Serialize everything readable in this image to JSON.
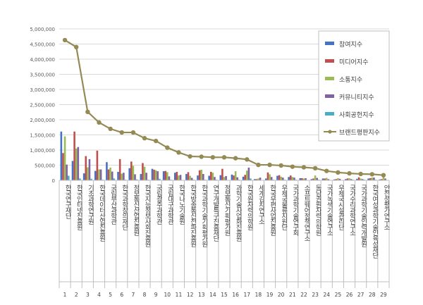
{
  "chart_data": {
    "type": "bar",
    "title": "",
    "xlabel": "",
    "ylabel": "",
    "ylim": [
      0,
      5000000
    ],
    "y_ticks": [
      "0",
      "500,000",
      "1,000,000",
      "1,500,000",
      "2,000,000",
      "2,500,000",
      "3,000,000",
      "3,500,000",
      "4,000,000",
      "4,500,000",
      "5,000,000"
    ],
    "y_tick_values": [
      0,
      500000,
      1000000,
      1500000,
      2000000,
      2500000,
      3000000,
      3500000,
      4000000,
      4500000,
      5000000
    ],
    "ranks": [
      "1",
      "2",
      "3",
      "4",
      "5",
      "6",
      "7",
      "8",
      "9",
      "10",
      "11",
      "12",
      "13",
      "14",
      "15",
      "16",
      "17",
      "18",
      "19",
      "20",
      "21",
      "22",
      "23",
      "24",
      "25",
      "26",
      "27",
      "28",
      "29"
    ],
    "categories": [
      "한국연구재단",
      "한국인터넷진흥원",
      "기초과학연구원",
      "한국데이터산업진흥원",
      "국립부산과학관",
      "한국과학창의재단",
      "정보통신산업진흥원",
      "한국지능정보사회진흥원",
      "국립광주과학관",
      "국립대구과학관",
      "한국나노기술원",
      "한국방송통신전파진흥원",
      "한국과학기술기획평가원",
      "연구개발특구진흥재단",
      "정보통신기획평가원",
      "과학기술사업화진흥원",
      "한국원자력의학원",
      "세계김치연구소",
      "한국우편사업진흥원",
      "우체국물류지원단",
      "국가과학기술연구회",
      "소프트웨어정책연구소",
      "동남권원자력의학원",
      "국가녹색기술연구소",
      "우체국시설관리단",
      "국가수리과학연구소",
      "국가과학기술인력개발원",
      "한국여성과학기술인육성재단",
      "안전성평가연구소"
    ],
    "series": [
      {
        "name": "참여지수",
        "color": "#4472c4",
        "type": "bar",
        "values": [
          1610000,
          640000,
          230000,
          310000,
          600000,
          280000,
          400000,
          210000,
          380000,
          300000,
          250000,
          210000,
          160000,
          150000,
          170000,
          190000,
          120000,
          40000,
          60000,
          150000,
          110000,
          70000,
          40000,
          60000,
          30000,
          40000,
          50000,
          60000,
          30000
        ]
      },
      {
        "name": "미디어지수",
        "color": "#c0504d",
        "type": "bar",
        "values": [
          900000,
          1610000,
          800000,
          980000,
          360000,
          700000,
          620000,
          570000,
          350000,
          310000,
          280000,
          270000,
          330000,
          280000,
          380000,
          160000,
          180000,
          40000,
          260000,
          170000,
          160000,
          70000,
          60000,
          60000,
          40000,
          60000,
          100000,
          70000,
          40000
        ]
      },
      {
        "name": "소통지수",
        "color": "#9bbb59",
        "type": "bar",
        "values": [
          1450000,
          1050000,
          430000,
          360000,
          420000,
          220000,
          480000,
          450000,
          330000,
          270000,
          160000,
          150000,
          350000,
          250000,
          110000,
          300000,
          320000,
          60000,
          200000,
          120000,
          110000,
          60000,
          160000,
          80000,
          70000,
          70000,
          60000,
          90000,
          110000
        ]
      },
      {
        "name": "커뮤니티지수",
        "color": "#8064a2",
        "type": "bar",
        "values": [
          520000,
          1100000,
          700000,
          360000,
          290000,
          250000,
          200000,
          250000,
          300000,
          130000,
          180000,
          80000,
          210000,
          110000,
          140000,
          100000,
          420000,
          90000,
          110000,
          90000,
          90000,
          70000,
          80000,
          40000,
          50000,
          40000,
          40000,
          90000,
          60000
        ]
      },
      {
        "name": "사회공헌지수",
        "color": "#4bacc6",
        "type": "bar",
        "values": [
          150000,
          60000,
          50000,
          20000,
          60000,
          20000,
          30000,
          20000,
          50000,
          20000,
          10000,
          20000,
          20000,
          20000,
          10000,
          20000,
          60000,
          10000,
          20000,
          20000,
          20000,
          10000,
          20000,
          10000,
          10000,
          20000,
          20000,
          20000,
          10000
        ]
      },
      {
        "name": "브랜드평판지수",
        "color": "#948a54",
        "type": "line",
        "values": [
          4630000,
          4400000,
          2260000,
          1910000,
          1700000,
          1580000,
          1580000,
          1390000,
          1300000,
          1080000,
          920000,
          790000,
          780000,
          760000,
          760000,
          730000,
          690000,
          510000,
          510000,
          490000,
          450000,
          430000,
          400000,
          310000,
          260000,
          230000,
          210000,
          200000,
          170000
        ]
      }
    ],
    "legend_position": "top-right",
    "grid": true
  }
}
